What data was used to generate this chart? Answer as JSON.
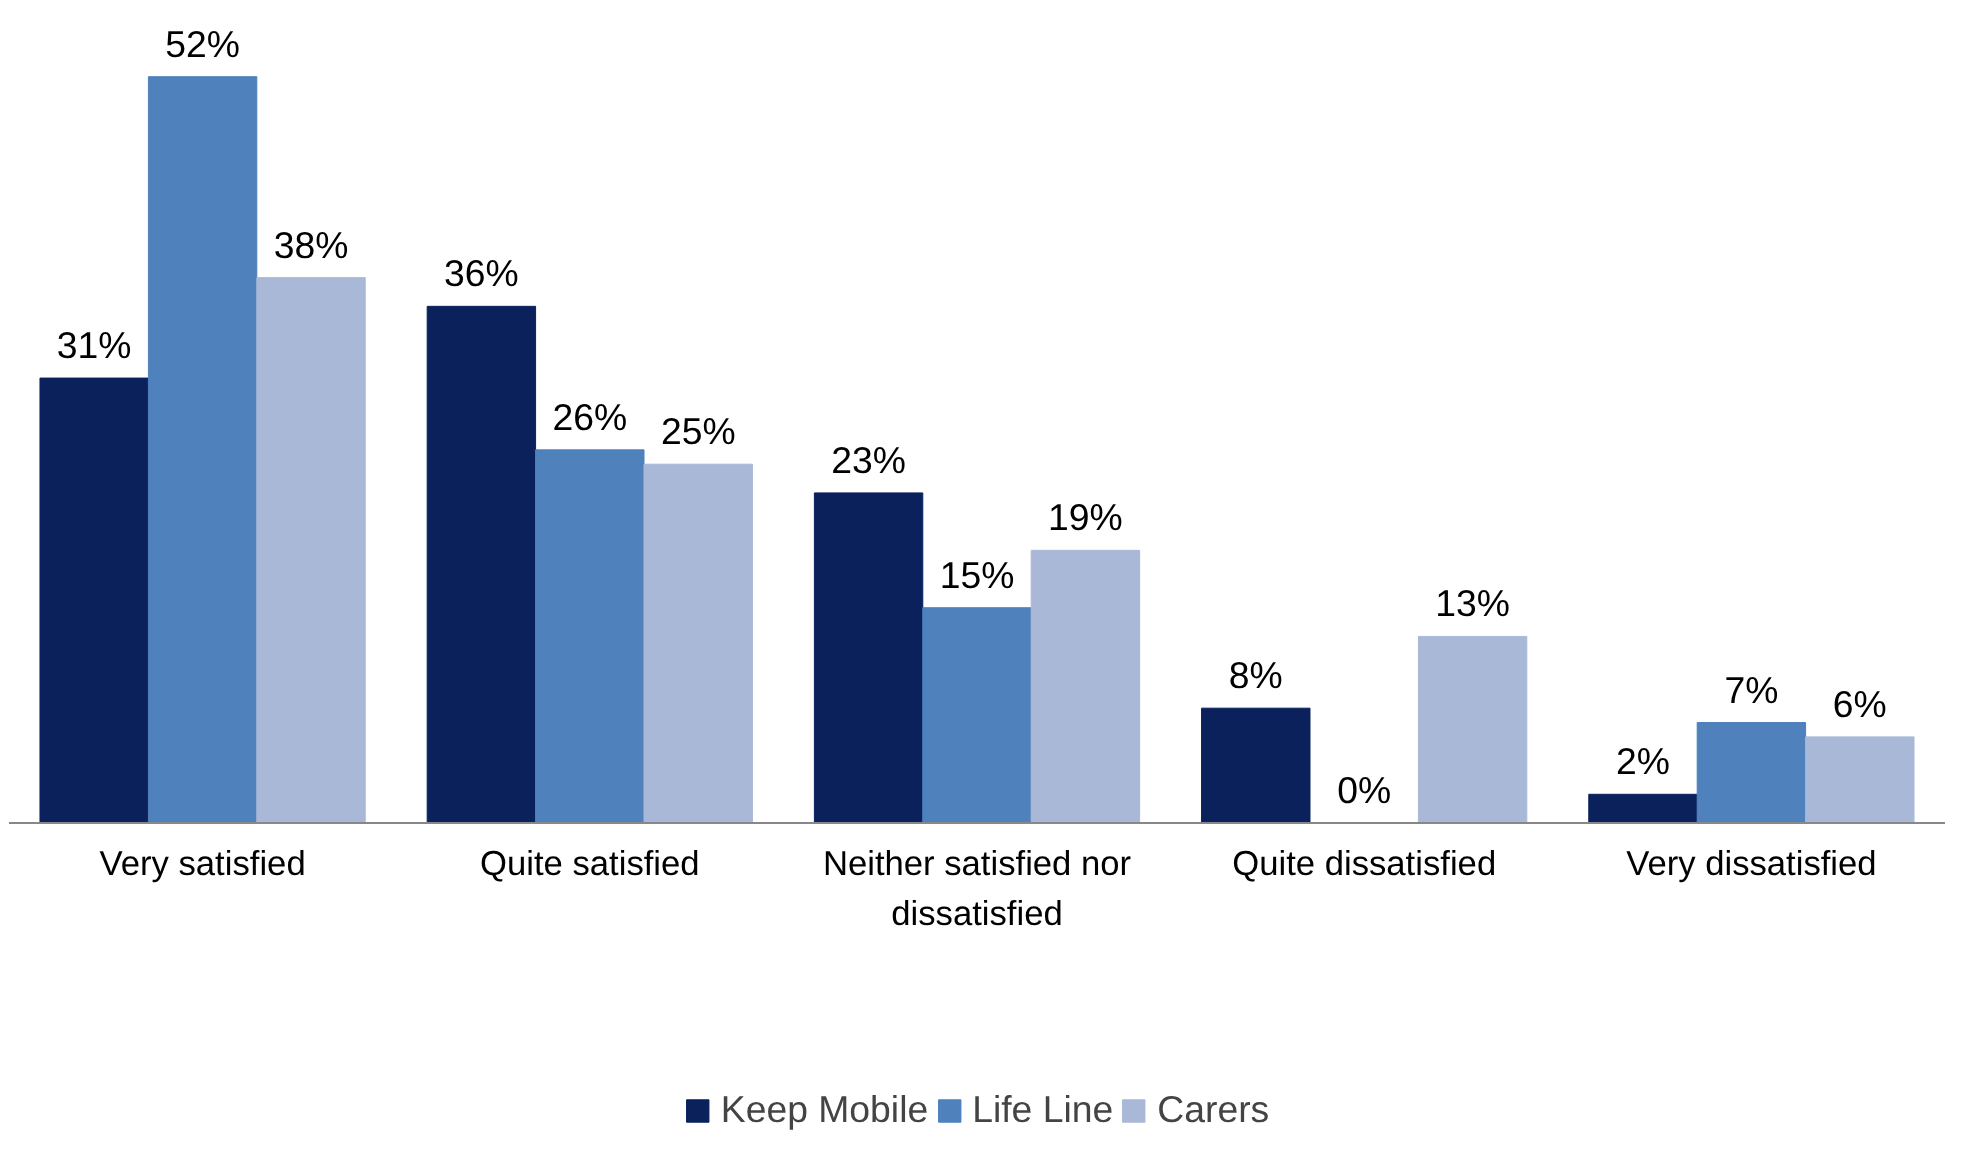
{
  "chart_data": {
    "type": "bar",
    "categories": [
      "Very satisfied",
      "Quite satisfied",
      "Neither satisfied nor dissatisfied",
      "Quite dissatisfied",
      "Very dissatisfied"
    ],
    "series": [
      {
        "name": "Keep Mobile",
        "color": "#0a215c",
        "values": [
          31,
          36,
          23,
          8,
          2
        ],
        "value_labels": [
          "31%",
          "36%",
          "23%",
          "8%",
          "2%"
        ]
      },
      {
        "name": "Life Line",
        "color": "#4f81bd",
        "values": [
          52,
          26,
          15,
          0,
          7
        ],
        "value_labels": [
          "52%",
          "26%",
          "15%",
          "0%",
          "7%"
        ]
      },
      {
        "name": "Carers",
        "color": "#a9b8d7",
        "values": [
          38,
          25,
          19,
          13,
          6
        ],
        "value_labels": [
          "38%",
          "25%",
          "19%",
          "13%",
          "6%"
        ]
      }
    ],
    "legend": "bottom"
  }
}
